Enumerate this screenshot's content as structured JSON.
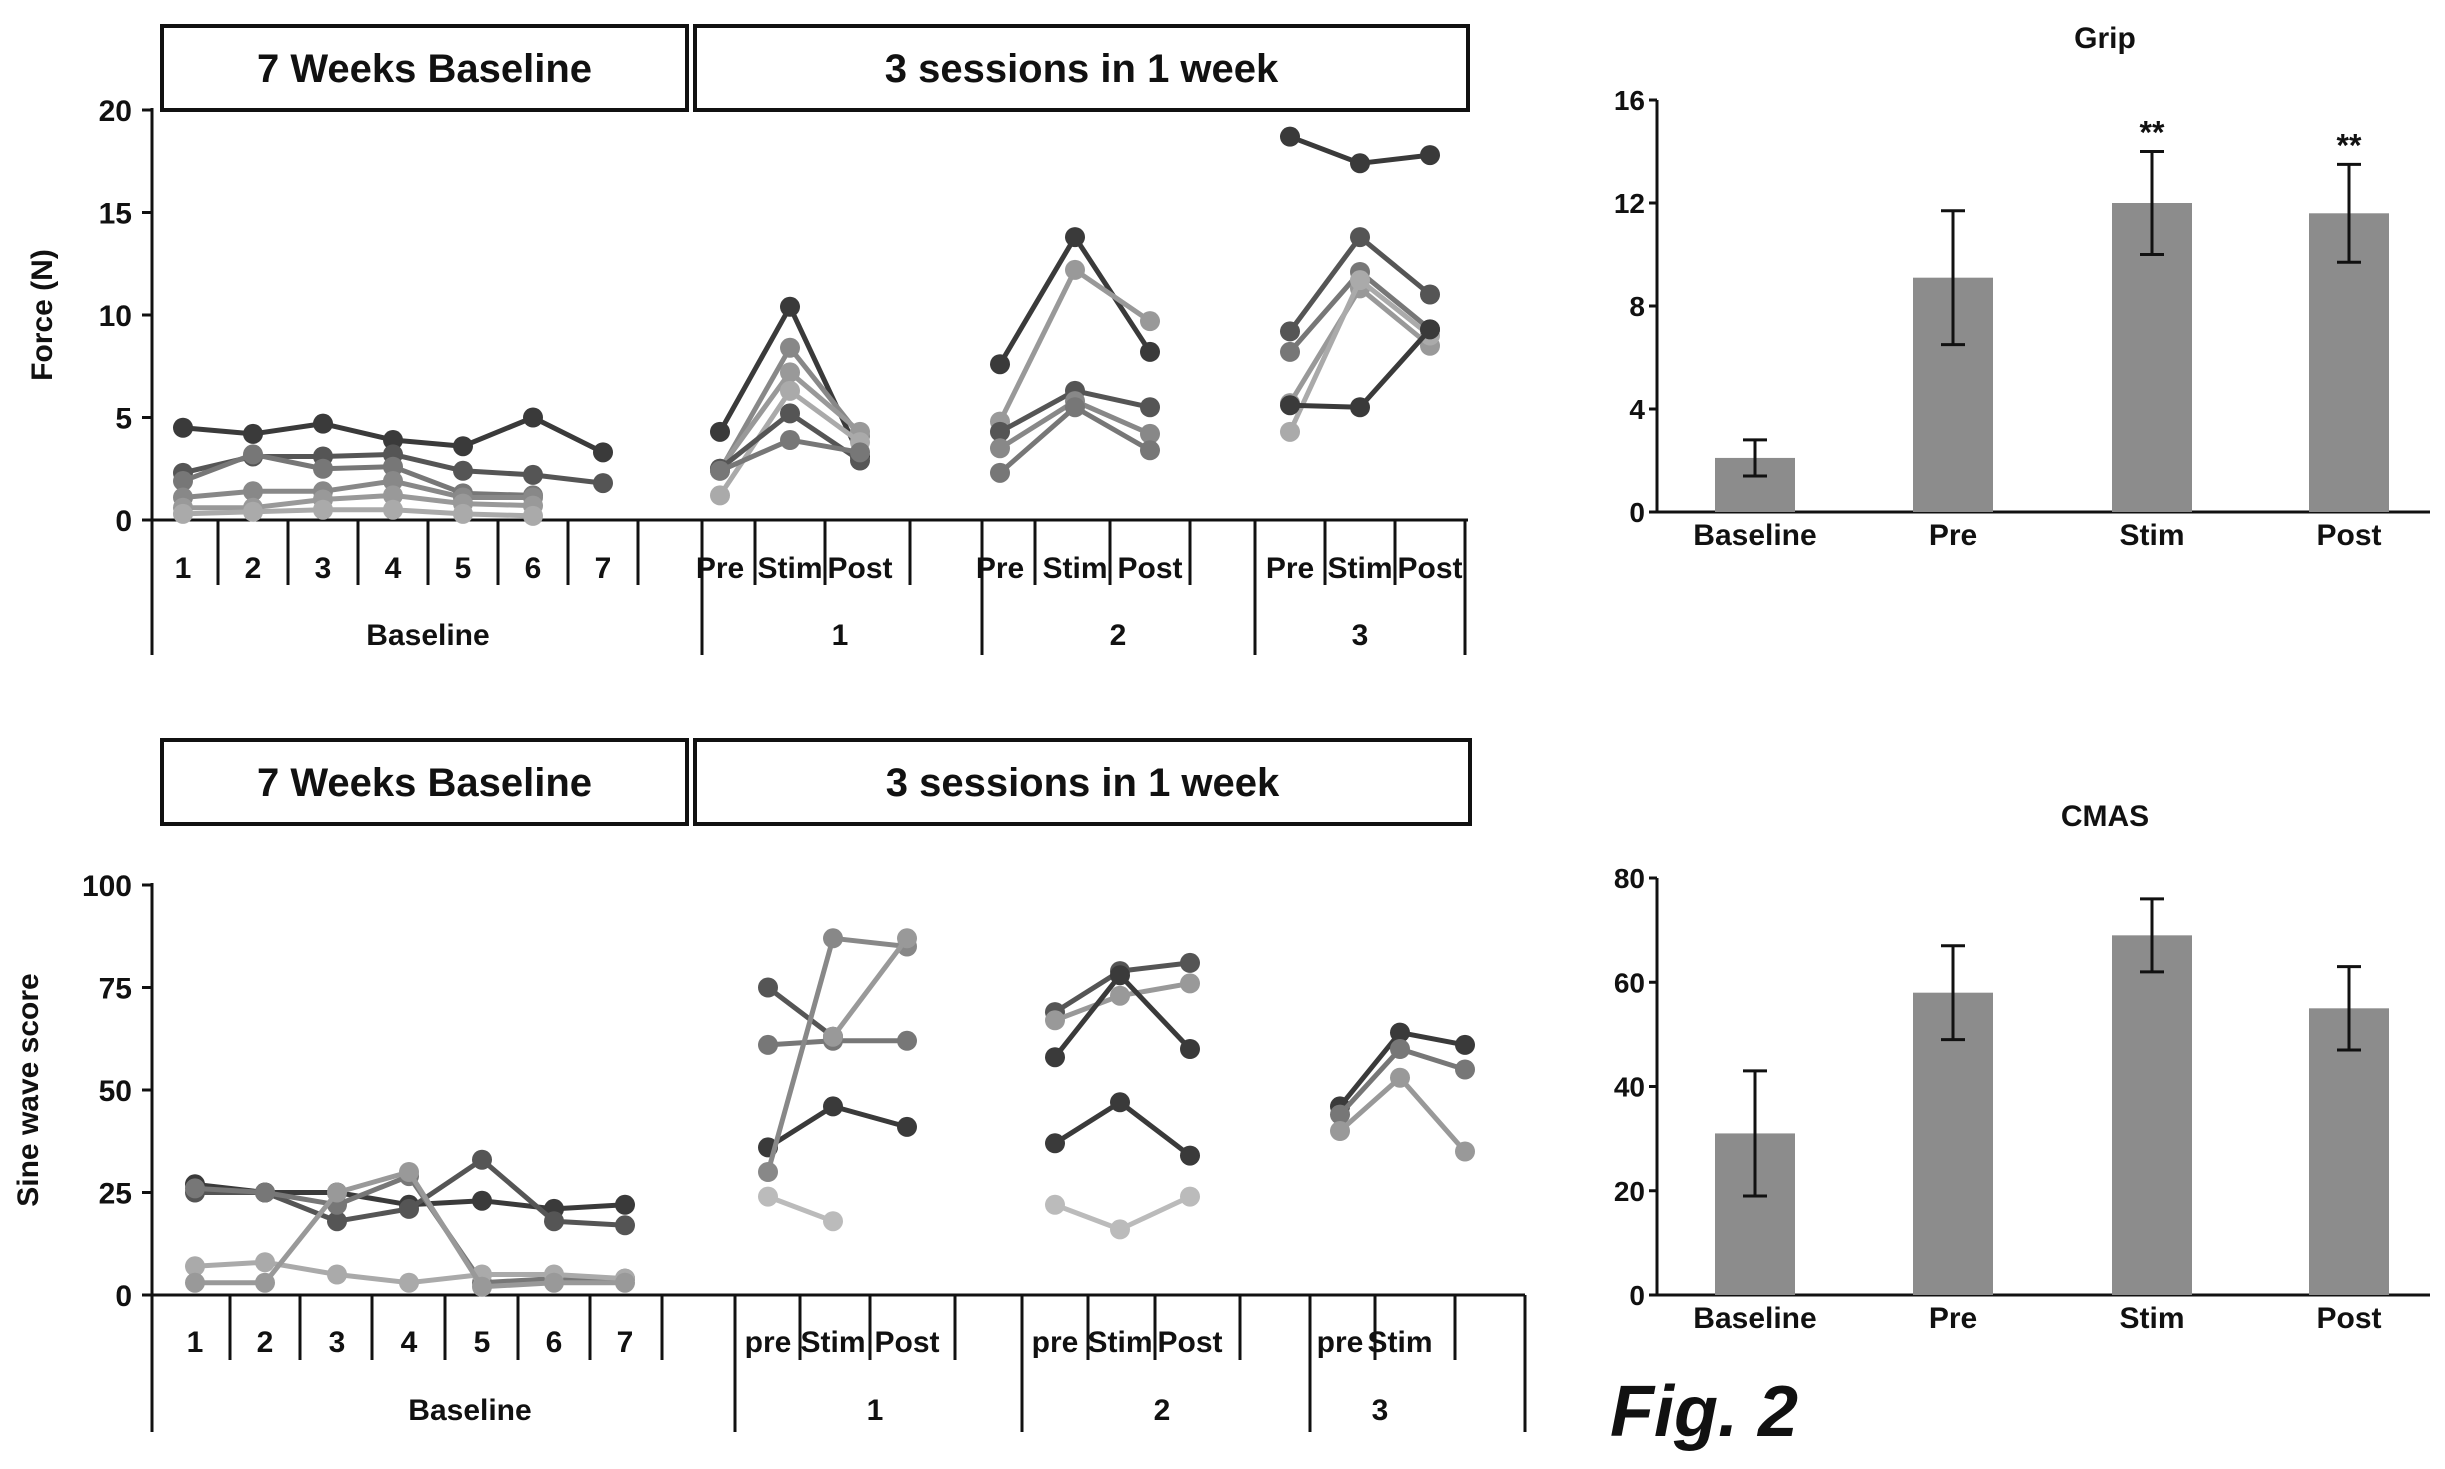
{
  "figure_label": "Fig. 2",
  "chart_data": [
    {
      "type": "line",
      "panel": "force",
      "banner_left": "7 Weeks Baseline",
      "banner_right": "3 sessions in 1 week",
      "ylabel": "Force (N)",
      "ylim": [
        0,
        20
      ],
      "yticks": [
        "0",
        "5",
        "10",
        "15",
        "20"
      ],
      "baseline_ticks": [
        "1",
        "2",
        "3",
        "4",
        "5",
        "6",
        "7"
      ],
      "baseline_group_label": "Baseline",
      "session_ticks": [
        "Pre",
        "Stim",
        "Post"
      ],
      "session_group_labels": [
        "1",
        "2",
        "3"
      ],
      "baseline_series": [
        {
          "values": [
            4.5,
            4.2,
            4.7,
            3.9,
            3.6,
            5.0,
            3.3
          ],
          "color": "#3a3a3a"
        },
        {
          "values": [
            2.3,
            3.1,
            3.1,
            3.2,
            2.4,
            2.2,
            1.8
          ],
          "color": "#555555"
        },
        {
          "values": [
            1.9,
            3.2,
            2.5,
            2.6,
            1.3,
            1.2
          ],
          "color": "#777777"
        },
        {
          "values": [
            1.1,
            1.4,
            1.4,
            1.9,
            1.1,
            1.1
          ],
          "color": "#888888"
        },
        {
          "values": [
            0.6,
            0.6,
            1.0,
            1.2,
            0.8,
            0.7
          ],
          "color": "#999999"
        },
        {
          "values": [
            0.3,
            0.4,
            0.5,
            0.5,
            0.3,
            0.2
          ],
          "color": "#aaaaaa"
        }
      ],
      "session_series": [
        {
          "session": 1,
          "values": [
            4.3,
            10.4,
            3.1
          ],
          "color": "#3a3a3a"
        },
        {
          "session": 1,
          "values": [
            2.4,
            8.4,
            4.1
          ],
          "color": "#888888"
        },
        {
          "session": 1,
          "values": [
            2.5,
            7.2,
            4.3
          ],
          "color": "#999999"
        },
        {
          "session": 1,
          "values": [
            1.2,
            6.3,
            3.8
          ],
          "color": "#aaaaaa"
        },
        {
          "session": 1,
          "values": [
            2.5,
            5.2,
            2.9
          ],
          "color": "#555555"
        },
        {
          "session": 1,
          "values": [
            2.4,
            3.9,
            3.3
          ],
          "color": "#777777"
        },
        {
          "session": 2,
          "values": [
            7.6,
            13.8,
            8.2
          ],
          "color": "#3a3a3a"
        },
        {
          "session": 2,
          "values": [
            4.8,
            12.2,
            9.7
          ],
          "color": "#999999"
        },
        {
          "session": 2,
          "values": [
            4.3,
            6.3,
            5.5
          ],
          "color": "#555555"
        },
        {
          "session": 2,
          "values": [
            3.5,
            5.8,
            4.2
          ],
          "color": "#888888"
        },
        {
          "session": 2,
          "values": [
            2.3,
            5.5,
            3.4
          ],
          "color": "#777777"
        },
        {
          "session": 3,
          "values": [
            18.7,
            17.4,
            17.8
          ],
          "color": "#3a3a3a"
        },
        {
          "session": 3,
          "values": [
            9.2,
            13.8,
            11.0
          ],
          "color": "#555555"
        },
        {
          "session": 3,
          "values": [
            8.2,
            12.1,
            9.3
          ],
          "color": "#777777"
        },
        {
          "session": 3,
          "values": [
            5.7,
            11.3,
            8.5
          ],
          "color": "#999999"
        },
        {
          "session": 3,
          "values": [
            4.3,
            11.7,
            9.0
          ],
          "color": "#aaaaaa"
        },
        {
          "session": 3,
          "values": [
            5.6,
            5.5,
            9.3
          ],
          "color": "#3a3a3a"
        }
      ]
    },
    {
      "type": "line",
      "panel": "sine",
      "banner_left": "7 Weeks Baseline",
      "banner_right": "3 sessions in 1 week",
      "ylabel": "Sine wave score",
      "ylim": [
        0,
        100
      ],
      "yticks": [
        "0",
        "25",
        "50",
        "75",
        "100"
      ],
      "baseline_ticks": [
        "1",
        "2",
        "3",
        "4",
        "5",
        "6",
        "7"
      ],
      "baseline_group_label": "Baseline",
      "session_ticks_full": [
        "pre",
        "Stim",
        "Post"
      ],
      "session_ticks_last": [
        "pre",
        "Stim"
      ],
      "session_group_labels": [
        "1",
        "2",
        "3"
      ],
      "baseline_series": [
        {
          "values": [
            27,
            25,
            25,
            22,
            23,
            21,
            22
          ],
          "color": "#3a3a3a"
        },
        {
          "values": [
            25,
            25,
            18,
            21,
            33,
            18,
            17
          ],
          "color": "#555555"
        },
        {
          "values": [
            26,
            25,
            22,
            29,
            3,
            4,
            4
          ],
          "color": "#777777"
        },
        {
          "values": [
            7,
            8,
            5,
            3,
            5,
            5,
            4
          ],
          "color": "#aaaaaa"
        },
        {
          "values": [
            3,
            3,
            25,
            30,
            2,
            3,
            3
          ],
          "color": "#999999"
        }
      ],
      "session_series": [
        {
          "session": 1,
          "values": [
            75,
            63,
            null
          ],
          "color": "#555555"
        },
        {
          "session": 1,
          "values": [
            61,
            62,
            62
          ],
          "color": "#777777"
        },
        {
          "session": 1,
          "values": [
            36,
            46,
            41
          ],
          "color": "#3a3a3a"
        },
        {
          "session": 1,
          "values": [
            30,
            87,
            85
          ],
          "color": "#888888"
        },
        {
          "session": 1,
          "values": [
            null,
            63,
            87
          ],
          "color": "#999999"
        },
        {
          "session": 1,
          "values": [
            24,
            18,
            null
          ],
          "color": "#bbbbbb"
        },
        {
          "session": 2,
          "values": [
            69,
            79,
            81
          ],
          "color": "#555555"
        },
        {
          "session": 2,
          "values": [
            67,
            73,
            76
          ],
          "color": "#999999"
        },
        {
          "session": 2,
          "values": [
            58,
            78,
            60
          ],
          "color": "#3a3a3a"
        },
        {
          "session": 2,
          "values": [
            37,
            47,
            34
          ],
          "color": "#3a3a3a"
        },
        {
          "session": 2,
          "values": [
            22,
            16,
            24
          ],
          "color": "#bbbbbb"
        },
        {
          "session": 3,
          "values": [
            46,
            64,
            61
          ],
          "color": "#3a3a3a"
        },
        {
          "session": 3,
          "values": [
            44,
            60,
            55
          ],
          "color": "#777777"
        },
        {
          "session": 3,
          "values": [
            40,
            53,
            35
          ],
          "color": "#999999"
        }
      ]
    },
    {
      "type": "bar",
      "panel": "grip",
      "title": "Grip",
      "categories": [
        "Baseline",
        "Pre",
        "Stim",
        "Post"
      ],
      "values": [
        2.1,
        9.1,
        12.0,
        11.6
      ],
      "errors": [
        0.7,
        2.6,
        2.0,
        1.9
      ],
      "annotations": [
        "",
        "",
        "**",
        "**"
      ],
      "ylim": [
        0,
        16
      ],
      "yticks": [
        "0",
        "4",
        "8",
        "12",
        "16"
      ],
      "bar_color": "#8c8c8c"
    },
    {
      "type": "bar",
      "panel": "cmas",
      "title": "CMAS",
      "categories": [
        "Baseline",
        "Pre",
        "Stim",
        "Post"
      ],
      "values": [
        31,
        58,
        69,
        55
      ],
      "errors": [
        12,
        9,
        7,
        8
      ],
      "annotations": [
        "",
        "",
        "",
        ""
      ],
      "ylim": [
        0,
        80
      ],
      "yticks": [
        "0",
        "20",
        "40",
        "60",
        "80"
      ],
      "bar_color": "#8c8c8c"
    }
  ]
}
